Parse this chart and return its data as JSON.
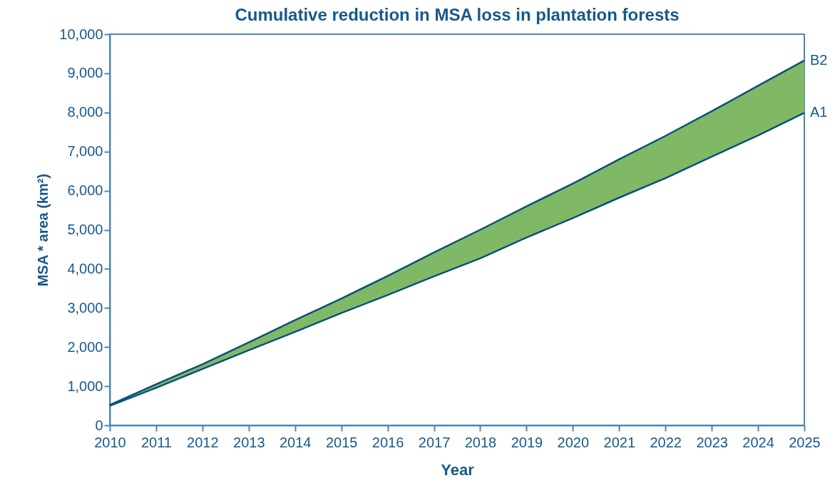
{
  "chart_data": {
    "type": "line",
    "title": "Cumulative reduction in MSA loss in plantation forests",
    "xlabel": "Year",
    "ylabel": "MSA * area (km²)",
    "x": [
      2010,
      2011,
      2012,
      2013,
      2014,
      2015,
      2016,
      2017,
      2018,
      2019,
      2020,
      2021,
      2022,
      2023,
      2024,
      2025
    ],
    "series": [
      {
        "name": "A1",
        "color": "#0b4f7c",
        "values": [
          500,
          960,
          1440,
          1920,
          2390,
          2870,
          3330,
          3810,
          4270,
          4800,
          5300,
          5820,
          6320,
          6870,
          7410,
          7990
        ]
      },
      {
        "name": "B2",
        "color": "#0b4f7c",
        "values": [
          520,
          1050,
          1560,
          2120,
          2690,
          3240,
          3820,
          4420,
          5000,
          5600,
          6180,
          6800,
          7400,
          8030,
          8680,
          9330
        ],
        "lower": [
          500,
          960,
          1440,
          1920,
          2390,
          2870,
          3330,
          3810,
          4270,
          4800,
          5300,
          5820,
          6320,
          6870,
          7410,
          7990
        ],
        "upper": [
          520,
          1050,
          1560,
          2120,
          2690,
          3240,
          3820,
          4420,
          5000,
          5600,
          6180,
          6800,
          7400,
          8030,
          8680,
          9330
        ]
      }
    ],
    "xlim": [
      2010,
      2025
    ],
    "xticks": [
      2010,
      2011,
      2012,
      2013,
      2014,
      2015,
      2016,
      2017,
      2018,
      2019,
      2020,
      2021,
      2022,
      2023,
      2024,
      2025
    ],
    "ylim": [
      0,
      10000
    ],
    "yticks": [
      {
        "value": 0,
        "label": "0"
      },
      {
        "value": 1000,
        "label": "1,000"
      },
      {
        "value": 2000,
        "label": "2,000"
      },
      {
        "value": 3000,
        "label": "3,000"
      },
      {
        "value": 4000,
        "label": "4,000"
      },
      {
        "value": 5000,
        "label": "5,000"
      },
      {
        "value": 6000,
        "label": "6,000"
      },
      {
        "value": 7000,
        "label": "7,000"
      },
      {
        "value": 8000,
        "label": "8,000"
      },
      {
        "value": 9000,
        "label": "9,000"
      },
      {
        "value": 10000,
        "label": "10,000"
      }
    ],
    "grid": false
  }
}
